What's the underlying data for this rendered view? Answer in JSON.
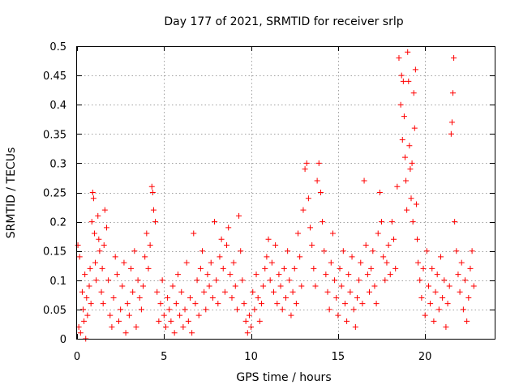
{
  "chart_data": {
    "type": "scatter",
    "title": "Day 177 of 2021, SRMTID for receiver srlp",
    "xlabel": "GPS time / hours",
    "ylabel": "SRMTID / TECUs",
    "xlim": [
      0,
      24
    ],
    "ylim": [
      0,
      0.5
    ],
    "xticks": [
      0,
      5,
      10,
      15,
      20
    ],
    "xtick_labels": [
      "0",
      "5",
      "10",
      "15",
      "20"
    ],
    "yticks": [
      0,
      0.05,
      0.1,
      0.15,
      0.2,
      0.25,
      0.3,
      0.35,
      0.4,
      0.45,
      0.5
    ],
    "ytick_labels": [
      "0",
      "0.05",
      "0.1",
      "0.15",
      "0.2",
      "0.25",
      "0.3",
      "0.35",
      "0.4",
      "0.45",
      "0.5"
    ],
    "grid": true,
    "marker": "+",
    "color": "#ff0000",
    "series": [
      {
        "name": "SRMTID",
        "points": [
          [
            0.05,
            0.16
          ],
          [
            0.1,
            0.02
          ],
          [
            0.15,
            0.14
          ],
          [
            0.2,
            0.01
          ],
          [
            0.3,
            0.08
          ],
          [
            0.35,
            0.05
          ],
          [
            0.4,
            0.03
          ],
          [
            0.45,
            0.11
          ],
          [
            0.5,
            0.0
          ],
          [
            0.55,
            0.07
          ],
          [
            0.6,
            0.04
          ],
          [
            0.7,
            0.09
          ],
          [
            0.75,
            0.12
          ],
          [
            0.8,
            0.06
          ],
          [
            0.85,
            0.2
          ],
          [
            0.9,
            0.25
          ],
          [
            0.95,
            0.24
          ],
          [
            1.0,
            0.18
          ],
          [
            1.05,
            0.13
          ],
          [
            1.1,
            0.1
          ],
          [
            1.2,
            0.21
          ],
          [
            1.25,
            0.17
          ],
          [
            1.3,
            0.15
          ],
          [
            1.4,
            0.08
          ],
          [
            1.45,
            0.12
          ],
          [
            1.5,
            0.06
          ],
          [
            1.55,
            0.16
          ],
          [
            1.6,
            0.22
          ],
          [
            1.7,
            0.19
          ],
          [
            1.8,
            0.1
          ],
          [
            1.9,
            0.04
          ],
          [
            2.0,
            0.02
          ],
          [
            2.1,
            0.07
          ],
          [
            2.2,
            0.14
          ],
          [
            2.3,
            0.11
          ],
          [
            2.4,
            0.03
          ],
          [
            2.5,
            0.05
          ],
          [
            2.6,
            0.09
          ],
          [
            2.7,
            0.13
          ],
          [
            2.8,
            0.01
          ],
          [
            2.9,
            0.06
          ],
          [
            3.0,
            0.04
          ],
          [
            3.1,
            0.12
          ],
          [
            3.2,
            0.08
          ],
          [
            3.3,
            0.15
          ],
          [
            3.4,
            0.02
          ],
          [
            3.5,
            0.1
          ],
          [
            3.6,
            0.07
          ],
          [
            3.7,
            0.05
          ],
          [
            3.8,
            0.09
          ],
          [
            3.9,
            0.14
          ],
          [
            4.0,
            0.18
          ],
          [
            4.1,
            0.12
          ],
          [
            4.2,
            0.16
          ],
          [
            4.3,
            0.26
          ],
          [
            4.35,
            0.25
          ],
          [
            4.4,
            0.22
          ],
          [
            4.5,
            0.2
          ],
          [
            4.6,
            0.08
          ],
          [
            4.7,
            0.03
          ],
          [
            4.8,
            0.06
          ],
          [
            4.9,
            0.1
          ],
          [
            5.0,
            0.04
          ],
          [
            5.1,
            0.02
          ],
          [
            5.2,
            0.07
          ],
          [
            5.3,
            0.05
          ],
          [
            5.4,
            0.03
          ],
          [
            5.5,
            0.09
          ],
          [
            5.6,
            0.01
          ],
          [
            5.7,
            0.06
          ],
          [
            5.8,
            0.11
          ],
          [
            5.9,
            0.04
          ],
          [
            6.0,
            0.08
          ],
          [
            6.1,
            0.02
          ],
          [
            6.2,
            0.05
          ],
          [
            6.3,
            0.13
          ],
          [
            6.4,
            0.03
          ],
          [
            6.5,
            0.07
          ],
          [
            6.6,
            0.01
          ],
          [
            6.7,
            0.18
          ],
          [
            6.8,
            0.06
          ],
          [
            6.9,
            0.1
          ],
          [
            7.0,
            0.04
          ],
          [
            7.1,
            0.12
          ],
          [
            7.2,
            0.15
          ],
          [
            7.3,
            0.08
          ],
          [
            7.4,
            0.05
          ],
          [
            7.5,
            0.11
          ],
          [
            7.6,
            0.09
          ],
          [
            7.7,
            0.13
          ],
          [
            7.8,
            0.07
          ],
          [
            7.9,
            0.2
          ],
          [
            8.0,
            0.1
          ],
          [
            8.1,
            0.06
          ],
          [
            8.2,
            0.14
          ],
          [
            8.3,
            0.17
          ],
          [
            8.4,
            0.12
          ],
          [
            8.5,
            0.08
          ],
          [
            8.6,
            0.16
          ],
          [
            8.7,
            0.19
          ],
          [
            8.8,
            0.11
          ],
          [
            8.9,
            0.07
          ],
          [
            9.0,
            0.13
          ],
          [
            9.1,
            0.09
          ],
          [
            9.2,
            0.05
          ],
          [
            9.3,
            0.21
          ],
          [
            9.4,
            0.15
          ],
          [
            9.5,
            0.1
          ],
          [
            9.6,
            0.06
          ],
          [
            9.7,
            0.03
          ],
          [
            9.8,
            0.01
          ],
          [
            9.9,
            0.04
          ],
          [
            10.0,
            0.02
          ],
          [
            10.1,
            0.08
          ],
          [
            10.2,
            0.05
          ],
          [
            10.3,
            0.11
          ],
          [
            10.4,
            0.07
          ],
          [
            10.5,
            0.03
          ],
          [
            10.6,
            0.06
          ],
          [
            10.7,
            0.09
          ],
          [
            10.8,
            0.12
          ],
          [
            10.9,
            0.14
          ],
          [
            11.0,
            0.17
          ],
          [
            11.1,
            0.1
          ],
          [
            11.2,
            0.13
          ],
          [
            11.3,
            0.08
          ],
          [
            11.4,
            0.16
          ],
          [
            11.5,
            0.06
          ],
          [
            11.6,
            0.11
          ],
          [
            11.7,
            0.09
          ],
          [
            11.8,
            0.05
          ],
          [
            11.9,
            0.12
          ],
          [
            12.0,
            0.07
          ],
          [
            12.1,
            0.15
          ],
          [
            12.2,
            0.1
          ],
          [
            12.3,
            0.04
          ],
          [
            12.4,
            0.08
          ],
          [
            12.5,
            0.12
          ],
          [
            12.6,
            0.06
          ],
          [
            12.7,
            0.18
          ],
          [
            12.8,
            0.14
          ],
          [
            12.9,
            0.09
          ],
          [
            13.0,
            0.22
          ],
          [
            13.1,
            0.29
          ],
          [
            13.2,
            0.3
          ],
          [
            13.3,
            0.24
          ],
          [
            13.4,
            0.19
          ],
          [
            13.5,
            0.16
          ],
          [
            13.6,
            0.12
          ],
          [
            13.7,
            0.09
          ],
          [
            13.8,
            0.27
          ],
          [
            13.9,
            0.3
          ],
          [
            14.0,
            0.25
          ],
          [
            14.1,
            0.2
          ],
          [
            14.2,
            0.15
          ],
          [
            14.3,
            0.11
          ],
          [
            14.4,
            0.08
          ],
          [
            14.5,
            0.05
          ],
          [
            14.6,
            0.13
          ],
          [
            14.7,
            0.18
          ],
          [
            14.8,
            0.1
          ],
          [
            14.9,
            0.07
          ],
          [
            15.0,
            0.04
          ],
          [
            15.1,
            0.12
          ],
          [
            15.2,
            0.09
          ],
          [
            15.3,
            0.15
          ],
          [
            15.4,
            0.06
          ],
          [
            15.5,
            0.03
          ],
          [
            15.6,
            0.11
          ],
          [
            15.7,
            0.08
          ],
          [
            15.8,
            0.14
          ],
          [
            15.9,
            0.05
          ],
          [
            16.0,
            0.02
          ],
          [
            16.1,
            0.07
          ],
          [
            16.2,
            0.1
          ],
          [
            16.3,
            0.13
          ],
          [
            16.4,
            0.06
          ],
          [
            16.5,
            0.27
          ],
          [
            16.6,
            0.16
          ],
          [
            16.7,
            0.11
          ],
          [
            16.8,
            0.08
          ],
          [
            16.9,
            0.12
          ],
          [
            17.0,
            0.15
          ],
          [
            17.1,
            0.09
          ],
          [
            17.2,
            0.06
          ],
          [
            17.3,
            0.18
          ],
          [
            17.4,
            0.25
          ],
          [
            17.5,
            0.2
          ],
          [
            17.6,
            0.14
          ],
          [
            17.7,
            0.1
          ],
          [
            17.8,
            0.13
          ],
          [
            17.9,
            0.16
          ],
          [
            18.0,
            0.11
          ],
          [
            18.1,
            0.2
          ],
          [
            18.2,
            0.17
          ],
          [
            18.3,
            0.12
          ],
          [
            18.4,
            0.26
          ],
          [
            18.5,
            0.48
          ],
          [
            18.6,
            0.4
          ],
          [
            18.65,
            0.45
          ],
          [
            18.7,
            0.34
          ],
          [
            18.75,
            0.44
          ],
          [
            18.8,
            0.38
          ],
          [
            18.85,
            0.31
          ],
          [
            18.9,
            0.27
          ],
          [
            18.95,
            0.22
          ],
          [
            19.0,
            0.49
          ],
          [
            19.05,
            0.44
          ],
          [
            19.1,
            0.33
          ],
          [
            19.15,
            0.29
          ],
          [
            19.2,
            0.24
          ],
          [
            19.25,
            0.3
          ],
          [
            19.3,
            0.2
          ],
          [
            19.35,
            0.42
          ],
          [
            19.4,
            0.36
          ],
          [
            19.45,
            0.46
          ],
          [
            19.5,
            0.23
          ],
          [
            19.55,
            0.17
          ],
          [
            19.6,
            0.13
          ],
          [
            19.7,
            0.1
          ],
          [
            19.8,
            0.07
          ],
          [
            19.9,
            0.12
          ],
          [
            20.0,
            0.04
          ],
          [
            20.1,
            0.15
          ],
          [
            20.2,
            0.09
          ],
          [
            20.3,
            0.06
          ],
          [
            20.4,
            0.12
          ],
          [
            20.5,
            0.03
          ],
          [
            20.6,
            0.08
          ],
          [
            20.7,
            0.11
          ],
          [
            20.8,
            0.05
          ],
          [
            20.9,
            0.14
          ],
          [
            21.0,
            0.07
          ],
          [
            21.1,
            0.1
          ],
          [
            21.2,
            0.02
          ],
          [
            21.3,
            0.06
          ],
          [
            21.4,
            0.09
          ],
          [
            21.5,
            0.35
          ],
          [
            21.55,
            0.37
          ],
          [
            21.6,
            0.42
          ],
          [
            21.65,
            0.48
          ],
          [
            21.7,
            0.2
          ],
          [
            21.8,
            0.15
          ],
          [
            21.9,
            0.11
          ],
          [
            22.0,
            0.08
          ],
          [
            22.1,
            0.13
          ],
          [
            22.2,
            0.05
          ],
          [
            22.3,
            0.1
          ],
          [
            22.4,
            0.03
          ],
          [
            22.5,
            0.07
          ],
          [
            22.6,
            0.12
          ],
          [
            22.7,
            0.15
          ],
          [
            22.8,
            0.09
          ]
        ]
      }
    ]
  }
}
